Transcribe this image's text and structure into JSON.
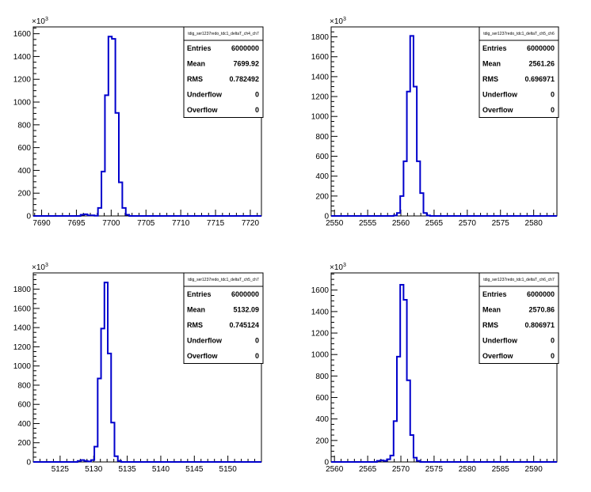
{
  "chart_data": [
    {
      "type": "histogram",
      "y_multiplier": "×10",
      "y_multiplier_exp": "3",
      "xlim": [
        7688.8,
        7721.6
      ],
      "ylim": [
        0,
        1660
      ],
      "xticks": [
        7690,
        7695,
        7700,
        7705,
        7710,
        7715,
        7720
      ],
      "yticks": [
        0,
        200,
        400,
        600,
        800,
        1000,
        1200,
        1400,
        1600
      ],
      "line_color": "#0000cc",
      "bins": {
        "start": 7695.6,
        "width": 0.5,
        "counts": [
          10,
          15,
          5,
          5,
          2,
          70,
          390,
          1060,
          1575,
          1555,
          905,
          295,
          70,
          10
        ]
      },
      "stats": {
        "title": "tdig_ser1237redo_tdc1_deltaT_ch4_ch7",
        "rows": [
          {
            "label": "Entries",
            "value": "6000000"
          },
          {
            "label": "Mean",
            "value": "7699.92"
          },
          {
            "label": "RMS",
            "value": "0.782492"
          },
          {
            "label": "Underflow",
            "value": "0"
          },
          {
            "label": "Overflow",
            "value": "0"
          }
        ]
      }
    },
    {
      "type": "histogram",
      "y_multiplier": "×10",
      "y_multiplier_exp": "3",
      "xlim": [
        2549.5,
        2583.5
      ],
      "ylim": [
        0,
        1900
      ],
      "xticks": [
        2550,
        2555,
        2560,
        2565,
        2570,
        2575,
        2580
      ],
      "yticks": [
        0,
        200,
        400,
        600,
        800,
        1000,
        1200,
        1400,
        1600,
        1800
      ],
      "line_color": "#0000cc",
      "bins": {
        "start": 2558.9,
        "width": 0.5,
        "counts": [
          5,
          30,
          200,
          550,
          1250,
          1810,
          1300,
          550,
          230,
          30,
          5
        ]
      },
      "stats": {
        "title": "tdig_ser1237redo_tdc1_deltaT_ch5_ch6",
        "rows": [
          {
            "label": "Entries",
            "value": "6000000"
          },
          {
            "label": "Mean",
            "value": "2561.26"
          },
          {
            "label": "RMS",
            "value": "0.696971"
          },
          {
            "label": "Underflow",
            "value": "0"
          },
          {
            "label": "Overflow",
            "value": "0"
          }
        ]
      }
    },
    {
      "type": "histogram",
      "y_multiplier": "×10",
      "y_multiplier_exp": "3",
      "xlim": [
        5121,
        5155
      ],
      "ylim": [
        0,
        1970
      ],
      "xticks": [
        5125,
        5130,
        5135,
        5140,
        5145,
        5150
      ],
      "yticks": [
        0,
        200,
        400,
        600,
        800,
        1000,
        1200,
        1400,
        1600,
        1800
      ],
      "line_color": "#0000cc",
      "bins": {
        "start": 5127.6,
        "width": 0.5,
        "counts": [
          10,
          20,
          10,
          5,
          20,
          160,
          870,
          1390,
          1870,
          1130,
          410,
          60,
          10
        ]
      },
      "stats": {
        "title": "tdig_ser1237redo_tdc1_deltaT_ch5_ch7",
        "rows": [
          {
            "label": "Entries",
            "value": "6000000"
          },
          {
            "label": "Mean",
            "value": "5132.09"
          },
          {
            "label": "RMS",
            "value": "0.745124"
          },
          {
            "label": "Underflow",
            "value": "0"
          },
          {
            "label": "Overflow",
            "value": "0"
          }
        ]
      }
    },
    {
      "type": "histogram",
      "y_multiplier": "×10",
      "y_multiplier_exp": "3",
      "xlim": [
        2559.5,
        2593.5
      ],
      "ylim": [
        0,
        1760
      ],
      "xticks": [
        2560,
        2565,
        2570,
        2575,
        2580,
        2585,
        2590
      ],
      "yticks": [
        0,
        200,
        400,
        600,
        800,
        1000,
        1200,
        1400,
        1600
      ],
      "line_color": "#0000cc",
      "bins": {
        "start": 2566.4,
        "width": 0.5,
        "counts": [
          10,
          15,
          10,
          25,
          60,
          380,
          980,
          1650,
          1510,
          760,
          250,
          40,
          10
        ]
      },
      "stats": {
        "title": "tdig_ser1237redo_tdc1_deltaT_ch6_ch7",
        "rows": [
          {
            "label": "Entries",
            "value": "6000000"
          },
          {
            "label": "Mean",
            "value": "2570.86"
          },
          {
            "label": "RMS",
            "value": "0.806971"
          },
          {
            "label": "Underflow",
            "value": "0"
          },
          {
            "label": "Overflow",
            "value": "0"
          }
        ]
      }
    }
  ]
}
